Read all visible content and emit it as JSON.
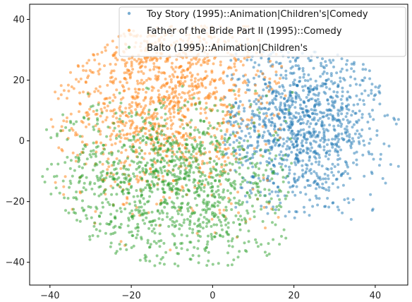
{
  "chart_data": {
    "type": "scatter",
    "title": "",
    "xlabel": "",
    "ylabel": "",
    "xlim": [
      -45,
      48
    ],
    "ylim": [
      -47.5,
      45
    ],
    "xticks": [
      -40,
      -20,
      0,
      20,
      40
    ],
    "yticks": [
      -40,
      -20,
      0,
      20,
      40
    ],
    "x_tick_labels": [
      "−40",
      "−20",
      "0",
      "20",
      "40"
    ],
    "y_tick_labels": [
      "−40",
      "−20",
      "0",
      "20",
      "40"
    ],
    "grid": false,
    "legend_position": "top-right",
    "marker_alpha": 0.5,
    "series": [
      {
        "name": "Toy Story (1995)::Animation|Children's|Comedy",
        "color": "#1f77b4",
        "cluster_center": [
          22,
          5
        ],
        "x_range": [
          3,
          46
        ],
        "y_range": [
          -26,
          30
        ],
        "approx_points": 1100
      },
      {
        "name": "Father of the Bride Part II (1995)::Comedy",
        "color": "#ff7f0e",
        "cluster_center": [
          -12,
          18
        ],
        "x_range": [
          -40,
          18
        ],
        "y_range": [
          -43,
          38
        ],
        "approx_points": 1200
      },
      {
        "name": "Balto (1995)::Animation|Children's",
        "color": "#2ca02c",
        "cluster_center": [
          -10,
          -15
        ],
        "x_range": [
          -42,
          20
        ],
        "y_range": [
          -42,
          18
        ],
        "approx_points": 1200
      }
    ]
  }
}
